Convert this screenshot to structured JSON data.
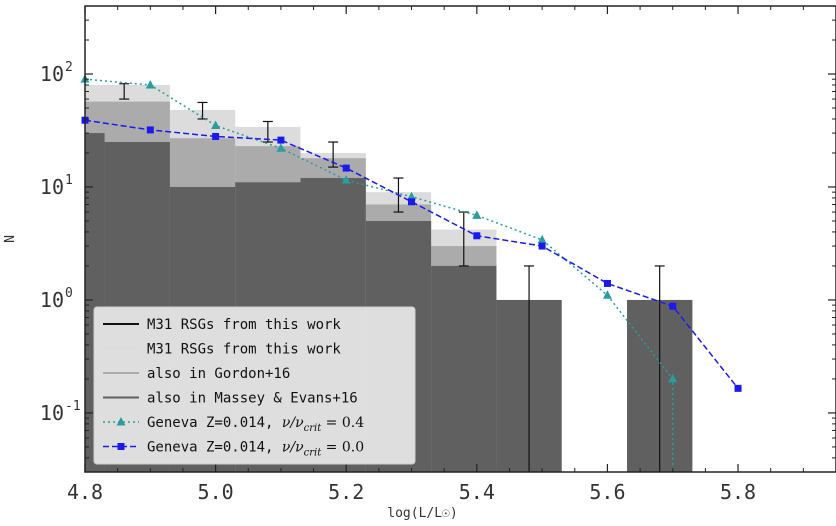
{
  "chart_data": {
    "type": "bar",
    "xlabel": "log(L/L☉)",
    "ylabel": "N",
    "xlim": [
      4.8,
      5.95
    ],
    "ylim": [
      0.03,
      400
    ],
    "yscale": "log",
    "grid": false,
    "legend_position": "bottom-left",
    "x_ticks": [
      "4.8",
      "5.0",
      "5.2",
      "5.4",
      "5.6",
      "5.8"
    ],
    "y_ticks": [
      {
        "value": 0.1,
        "mantissa": "10",
        "exp": "-1"
      },
      {
        "value": 1,
        "mantissa": "10",
        "exp": "0"
      },
      {
        "value": 10,
        "mantissa": "10",
        "exp": "1"
      },
      {
        "value": 100,
        "mantissa": "10",
        "exp": "2"
      }
    ],
    "histograms": [
      {
        "name": "M31 RSGs from this work",
        "color": "#dcdcdc",
        "bins": [
          {
            "x0": 4.8,
            "x1": 4.93,
            "y": 80
          },
          {
            "x0": 4.93,
            "x1": 5.03,
            "y": 48
          },
          {
            "x0": 5.03,
            "x1": 5.13,
            "y": 34
          },
          {
            "x0": 5.13,
            "x1": 5.23,
            "y": 20
          },
          {
            "x0": 5.23,
            "x1": 5.33,
            "y": 9
          },
          {
            "x0": 5.33,
            "x1": 5.43,
            "y": 4.2
          },
          {
            "x0": 5.63,
            "x1": 5.73,
            "y": 1
          }
        ]
      },
      {
        "name": "also in Gordon+16",
        "color": "#ababab",
        "bins": [
          {
            "x0": 4.8,
            "x1": 4.93,
            "y": 57
          },
          {
            "x0": 4.93,
            "x1": 5.03,
            "y": 27
          },
          {
            "x0": 5.03,
            "x1": 5.13,
            "y": 23
          },
          {
            "x0": 5.13,
            "x1": 5.23,
            "y": 18
          },
          {
            "x0": 5.23,
            "x1": 5.33,
            "y": 7
          },
          {
            "x0": 5.33,
            "x1": 5.43,
            "y": 3
          },
          {
            "x0": 5.63,
            "x1": 5.73,
            "y": 1
          }
        ]
      },
      {
        "name": "also in Massey & Evans+16",
        "color": "#606060",
        "bins": [
          {
            "x0": 4.8,
            "x1": 4.83,
            "y": 30
          },
          {
            "x0": 4.83,
            "x1": 4.93,
            "y": 25
          },
          {
            "x0": 4.93,
            "x1": 5.03,
            "y": 10
          },
          {
            "x0": 5.03,
            "x1": 5.13,
            "y": 11
          },
          {
            "x0": 5.13,
            "x1": 5.23,
            "y": 12
          },
          {
            "x0": 5.23,
            "x1": 5.33,
            "y": 5
          },
          {
            "x0": 5.33,
            "x1": 5.43,
            "y": 2
          },
          {
            "x0": 5.43,
            "x1": 5.53,
            "y": 1
          },
          {
            "x0": 5.63,
            "x1": 5.73,
            "y": 1
          }
        ]
      }
    ],
    "error_bars": {
      "name": "M31 RSGs from this work",
      "color": "#111111",
      "points": [
        {
          "x": 4.86,
          "y": 70,
          "low": 60,
          "high": 82
        },
        {
          "x": 4.98,
          "y": 48,
          "low": 40,
          "high": 56
        },
        {
          "x": 5.08,
          "y": 31,
          "low": 25,
          "high": 38
        },
        {
          "x": 5.18,
          "y": 20,
          "low": 15,
          "high": 25
        },
        {
          "x": 5.28,
          "y": 9,
          "low": 6,
          "high": 12
        },
        {
          "x": 5.38,
          "y": 4,
          "low": 2,
          "high": 6
        },
        {
          "x": 5.48,
          "y": 1,
          "low": 0.03,
          "high": 2
        },
        {
          "x": 5.68,
          "y": 1,
          "low": 0.03,
          "high": 2
        }
      ]
    },
    "series": [
      {
        "name": "Geneva Z=0.014, ν/ν_crit=0.4",
        "color": "#2a9d9d",
        "marker": "triangle",
        "dash": "dotted",
        "x": [
          4.8,
          4.9,
          5.0,
          5.1,
          5.2,
          5.3,
          5.4,
          5.5,
          5.6,
          5.7,
          5.7
        ],
        "y": [
          90,
          80,
          35,
          22,
          11.5,
          8.2,
          5.6,
          3.4,
          1.1,
          0.2,
          0.03
        ]
      },
      {
        "name": "Geneva Z=0.014, ν/ν_crit=0.0",
        "color": "#1a1aee",
        "marker": "square",
        "dash": "dashed",
        "x": [
          4.8,
          4.9,
          5.0,
          5.1,
          5.2,
          5.3,
          5.4,
          5.5,
          5.6,
          5.7,
          5.8
        ],
        "y": [
          39,
          32,
          28,
          26,
          14.7,
          7.4,
          3.7,
          3.0,
          1.4,
          0.88,
          0.165
        ]
      }
    ],
    "legend": [
      {
        "label": "M31 RSGs from this work",
        "kind": "line",
        "color": "#111111"
      },
      {
        "label": "M31 RSGs from this work",
        "kind": "line",
        "color": "#dcdcdc"
      },
      {
        "label": "also in Gordon+16",
        "kind": "line",
        "color": "#ababab"
      },
      {
        "label": "also in Massey & Evans+16",
        "kind": "line",
        "color": "#606060"
      },
      {
        "label": "Geneva Z=0.014, ",
        "ratio": "0.4",
        "kind": "series",
        "series": 0
      },
      {
        "label": "Geneva Z=0.014, ",
        "ratio": "0.0",
        "kind": "series",
        "series": 1
      }
    ]
  }
}
